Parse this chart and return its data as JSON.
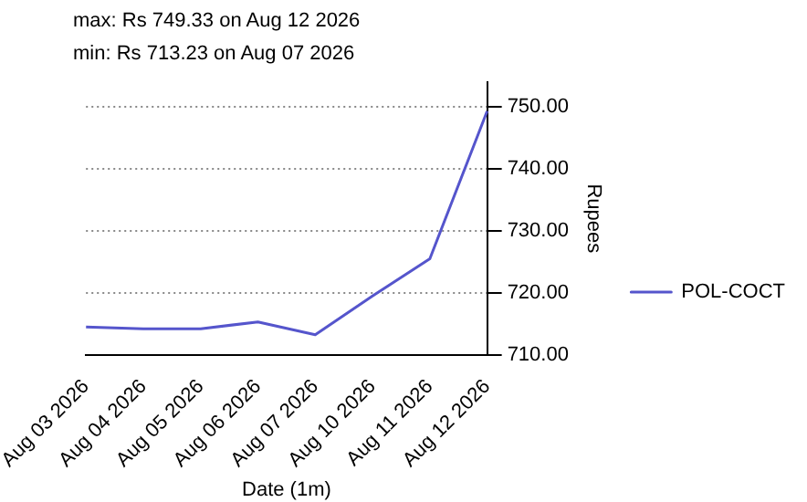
{
  "chart_data": {
    "type": "line",
    "categories": [
      "Aug 03 2026",
      "Aug 04 2026",
      "Aug 05 2026",
      "Aug 06 2026",
      "Aug 07 2026",
      "Aug 10 2026",
      "Aug 11 2026",
      "Aug 12 2026"
    ],
    "series": [
      {
        "name": "POL-COCT",
        "color": "#5555cc",
        "values": [
          714.5,
          714.2,
          714.2,
          715.3,
          713.23,
          719.5,
          725.5,
          749.33
        ]
      }
    ],
    "xlabel": "Date (1m)",
    "ylabel": "Rupees",
    "ylim": [
      710,
      754
    ],
    "yticks": [
      {
        "value": 710,
        "label": "710.00"
      },
      {
        "value": 720,
        "label": "720.00"
      },
      {
        "value": 730,
        "label": "730.00"
      },
      {
        "value": 740,
        "label": "740.00"
      },
      {
        "value": 750,
        "label": "750.00"
      }
    ],
    "grid": "y",
    "legend": "right",
    "marker": "none",
    "line_style": "solid",
    "annotations": [
      "max: Rs 749.33 on Aug 12 2026",
      "min: Rs 713.23 on Aug 07 2026"
    ]
  }
}
